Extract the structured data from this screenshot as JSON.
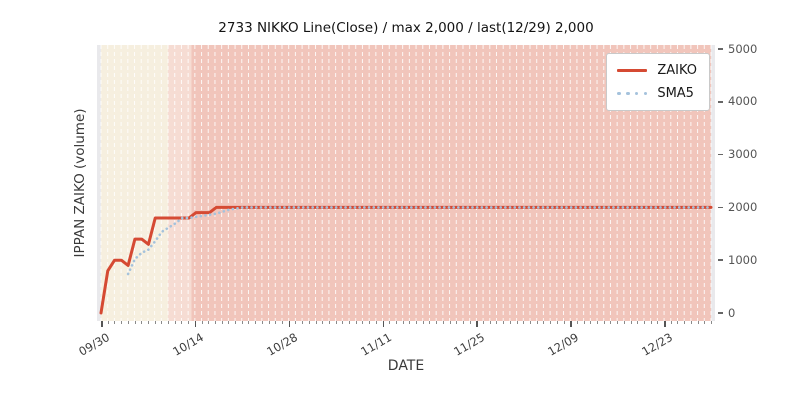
{
  "title": "2733 NIKKO Line(Close) / max 2,000 / last(12/29) 2,000",
  "xlabel": "DATE",
  "ylabel": "IPPAN ZAIKO (volume)",
  "legend": {
    "items": [
      {
        "label": "ZAIKO",
        "color": "#d54a33",
        "style": "solid"
      },
      {
        "label": "SMA5",
        "color": "#a4c2dc",
        "style": "dotted"
      }
    ]
  },
  "chart_data": {
    "type": "line",
    "title": "2733 NIKKO Line(Close) / max 2,000 / last(12/29) 2,000",
    "xlabel": "DATE",
    "ylabel": "IPPAN ZAIKO (volume)",
    "x_start_date": "09/30",
    "x_end_date": "12/29",
    "days_total": 91,
    "x_tick_labels": [
      "09/30",
      "10/14",
      "10/28",
      "11/11",
      "11/25",
      "12/09",
      "12/23"
    ],
    "x_tick_days": [
      0,
      14,
      28,
      42,
      56,
      70,
      84
    ],
    "y_ticks": [
      0,
      1000,
      2000,
      3000,
      4000,
      5000
    ],
    "ylim": [
      0,
      5000
    ],
    "max_value": 2000,
    "last_value": 2000,
    "grid": {
      "vertical_daily_dashed": true,
      "color": "rgba(255,255,255,0.85)"
    },
    "plot_bg": "#e9e9ec",
    "legend_position": "upper right",
    "background_bands": [
      {
        "from_day": 0,
        "to_day": 10,
        "color": "#f6efdf"
      },
      {
        "from_day": 10,
        "to_day": 13.5,
        "color": "#f6dcd3"
      },
      {
        "from_day": 13.5,
        "to_day": 91,
        "color": "#f1c5bb"
      }
    ],
    "series": [
      {
        "name": "ZAIKO",
        "color": "#d54a33",
        "style": "solid",
        "values": [
          0,
          800,
          1000,
          1000,
          900,
          1400,
          1400,
          1300,
          1800,
          1800,
          1800,
          1800,
          1800,
          1800,
          1900,
          1900,
          1900,
          2000,
          2000,
          2000,
          2000,
          2000,
          2000,
          2000,
          2000,
          2000,
          2000,
          2000,
          2000,
          2000,
          2000,
          2000,
          2000,
          2000,
          2000,
          2000,
          2000,
          2000,
          2000,
          2000,
          2000,
          2000,
          2000,
          2000,
          2000,
          2000,
          2000,
          2000,
          2000,
          2000,
          2000,
          2000,
          2000,
          2000,
          2000,
          2000,
          2000,
          2000,
          2000,
          2000,
          2000,
          2000,
          2000,
          2000,
          2000,
          2000,
          2000,
          2000,
          2000,
          2000,
          2000,
          2000,
          2000,
          2000,
          2000,
          2000,
          2000,
          2000,
          2000,
          2000,
          2000,
          2000,
          2000,
          2000,
          2000,
          2000,
          2000,
          2000,
          2000,
          2000,
          2000
        ]
      },
      {
        "name": "SMA5",
        "color": "#a4c2dc",
        "style": "dotted",
        "values": [
          null,
          null,
          null,
          null,
          740,
          1020,
          1140,
          1200,
          1360,
          1540,
          1620,
          1700,
          1800,
          1800,
          1820,
          1840,
          1860,
          1880,
          1920,
          1960,
          1980,
          2000,
          2000,
          2000,
          2000,
          2000,
          2000,
          2000,
          2000,
          2000,
          2000,
          2000,
          2000,
          2000,
          2000,
          2000,
          2000,
          2000,
          2000,
          2000,
          2000,
          2000,
          2000,
          2000,
          2000,
          2000,
          2000,
          2000,
          2000,
          2000,
          2000,
          2000,
          2000,
          2000,
          2000,
          2000,
          2000,
          2000,
          2000,
          2000,
          2000,
          2000,
          2000,
          2000,
          2000,
          2000,
          2000,
          2000,
          2000,
          2000,
          2000,
          2000,
          2000,
          2000,
          2000,
          2000,
          2000,
          2000,
          2000,
          2000,
          2000,
          2000,
          2000,
          2000,
          2000,
          2000,
          2000,
          2000,
          2000,
          2000,
          2000
        ]
      }
    ]
  }
}
